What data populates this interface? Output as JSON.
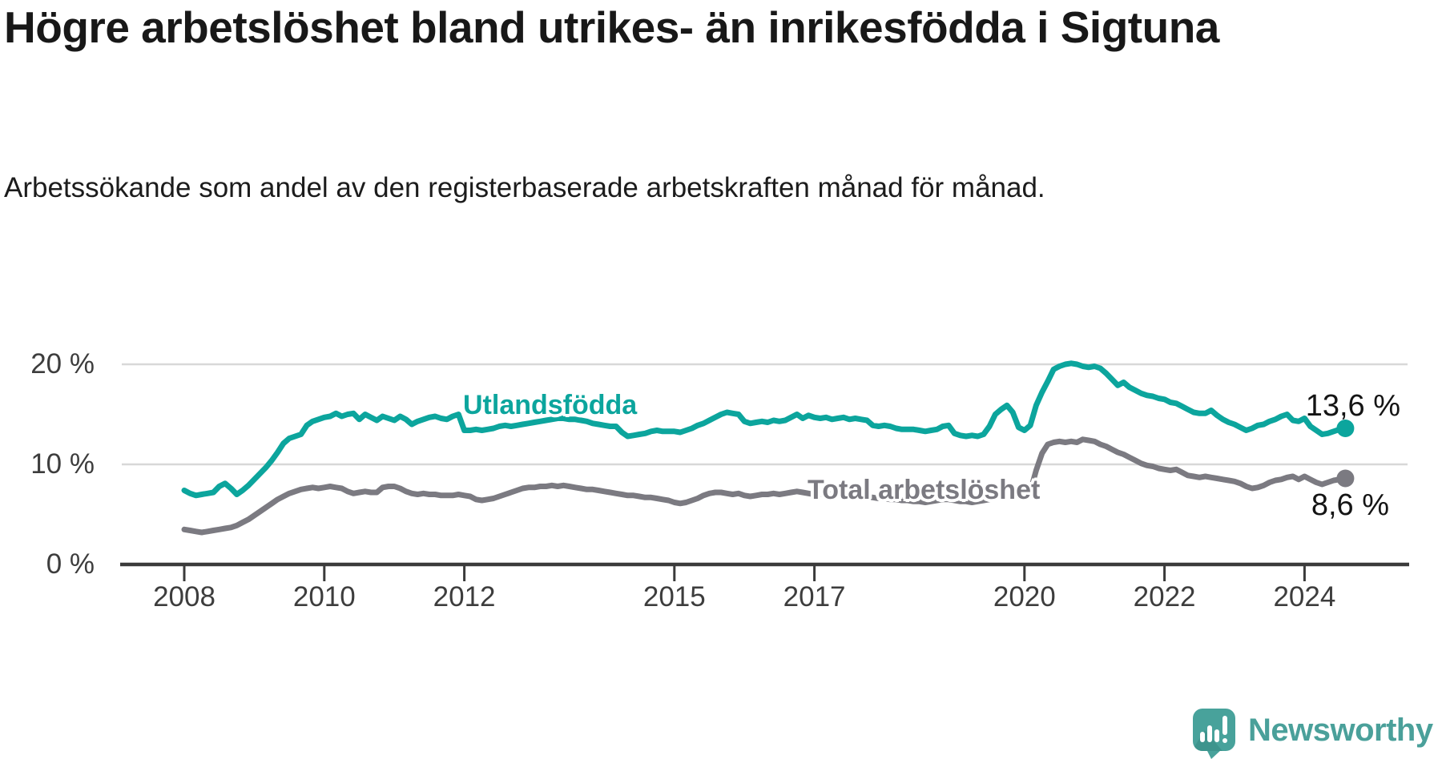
{
  "title": "Högre arbetslöshet bland utrikes- än inrikesfödda i Sigtuna",
  "subtitle": "Arbetssökande som andel av den registerbaserade arbetskraften månad för månad.",
  "logo": {
    "brand": "Newsworthy",
    "icon": "newsworthy-speech-bubble-chart-icon"
  },
  "colors": {
    "foreign_born_line": "#0ca59d",
    "total_line": "#7b7a81",
    "axis": "#3b3b3b",
    "grid": "#d8d8d8",
    "title_text": "#181818",
    "brand_teal": "#4aa09a"
  },
  "chart_data": {
    "type": "line",
    "title": "Högre arbetslöshet bland utrikes- än inrikesfödda i Sigtuna",
    "subtitle": "Arbetssökande som andel av den registerbaserade arbetskraften månad för månad.",
    "unit": "percent",
    "frequency": "monthly",
    "x_start": "2008-01",
    "x_end": "2024-08",
    "xticks": [
      2008,
      2010,
      2012,
      2015,
      2017,
      2020,
      2022,
      2024
    ],
    "yticks": [
      {
        "label": "0 %",
        "value": 0
      },
      {
        "label": "10 %",
        "value": 10
      },
      {
        "label": "20 %",
        "value": 20
      }
    ],
    "ylim": [
      0,
      22
    ],
    "grid": "horizontal",
    "legend_position": "inline-labels",
    "series": [
      {
        "name": "Utlandsfödda",
        "color": "#0ca59d",
        "end_label": "13,6 %",
        "end_value": 13.6,
        "values": [
          7.4,
          7.1,
          6.9,
          7.0,
          7.1,
          7.2,
          7.8,
          8.1,
          7.6,
          7.0,
          7.4,
          7.9,
          8.5,
          9.1,
          9.7,
          10.4,
          11.2,
          12.1,
          12.6,
          12.8,
          13.0,
          13.9,
          14.3,
          14.5,
          14.7,
          14.8,
          15.1,
          14.8,
          15.0,
          15.1,
          14.5,
          15.0,
          14.7,
          14.4,
          14.8,
          14.6,
          14.4,
          14.8,
          14.5,
          14.0,
          14.3,
          14.5,
          14.7,
          14.8,
          14.6,
          14.5,
          14.8,
          15.0,
          13.4,
          13.4,
          13.5,
          13.4,
          13.5,
          13.6,
          13.8,
          13.9,
          13.8,
          13.9,
          14.0,
          14.1,
          14.2,
          14.3,
          14.4,
          14.5,
          14.6,
          14.6,
          14.5,
          14.5,
          14.4,
          14.3,
          14.1,
          14.0,
          13.9,
          13.8,
          13.8,
          13.2,
          12.8,
          12.9,
          13.0,
          13.1,
          13.3,
          13.4,
          13.3,
          13.3,
          13.3,
          13.2,
          13.4,
          13.6,
          13.9,
          14.1,
          14.4,
          14.7,
          15.0,
          15.2,
          15.1,
          15.0,
          14.3,
          14.1,
          14.2,
          14.3,
          14.2,
          14.4,
          14.3,
          14.4,
          14.7,
          15.0,
          14.6,
          14.9,
          14.7,
          14.6,
          14.7,
          14.5,
          14.6,
          14.7,
          14.5,
          14.6,
          14.5,
          14.4,
          13.9,
          13.8,
          13.9,
          13.8,
          13.6,
          13.5,
          13.5,
          13.5,
          13.4,
          13.3,
          13.4,
          13.5,
          13.8,
          13.9,
          13.1,
          12.9,
          12.8,
          12.9,
          12.8,
          13.0,
          13.8,
          15.0,
          15.5,
          15.9,
          15.2,
          13.7,
          13.4,
          13.9,
          15.9,
          17.2,
          18.3,
          19.5,
          19.8,
          20.0,
          20.1,
          20.0,
          19.8,
          19.7,
          19.8,
          19.6,
          19.1,
          18.5,
          17.9,
          18.2,
          17.7,
          17.4,
          17.1,
          16.9,
          16.8,
          16.6,
          16.5,
          16.2,
          16.1,
          15.8,
          15.5,
          15.2,
          15.1,
          15.1,
          15.4,
          14.9,
          14.5,
          14.2,
          14.0,
          13.7,
          13.4,
          13.6,
          13.9,
          14.0,
          14.3,
          14.5,
          14.8,
          15.0,
          14.4,
          14.3,
          14.6,
          13.8,
          13.4,
          13.0,
          13.1,
          13.3,
          13.5,
          13.6
        ]
      },
      {
        "name": "Total arbetslöshet",
        "color": "#7b7a81",
        "end_label": "8,6 %",
        "end_value": 8.6,
        "values": [
          3.5,
          3.4,
          3.3,
          3.2,
          3.3,
          3.4,
          3.5,
          3.6,
          3.7,
          3.9,
          4.2,
          4.5,
          4.9,
          5.3,
          5.7,
          6.1,
          6.5,
          6.8,
          7.1,
          7.3,
          7.5,
          7.6,
          7.7,
          7.6,
          7.7,
          7.8,
          7.7,
          7.6,
          7.3,
          7.1,
          7.2,
          7.3,
          7.2,
          7.2,
          7.7,
          7.8,
          7.8,
          7.6,
          7.3,
          7.1,
          7.0,
          7.1,
          7.0,
          7.0,
          6.9,
          6.9,
          6.9,
          7.0,
          6.9,
          6.8,
          6.5,
          6.4,
          6.5,
          6.6,
          6.8,
          7.0,
          7.2,
          7.4,
          7.6,
          7.7,
          7.7,
          7.8,
          7.8,
          7.9,
          7.8,
          7.9,
          7.8,
          7.7,
          7.6,
          7.5,
          7.5,
          7.4,
          7.3,
          7.2,
          7.1,
          7.0,
          6.9,
          6.9,
          6.8,
          6.7,
          6.7,
          6.6,
          6.5,
          6.4,
          6.2,
          6.1,
          6.2,
          6.4,
          6.6,
          6.9,
          7.1,
          7.2,
          7.2,
          7.1,
          7.0,
          7.1,
          6.9,
          6.8,
          6.9,
          7.0,
          7.0,
          7.1,
          7.0,
          7.1,
          7.2,
          7.3,
          7.2,
          7.1,
          7.0,
          7.0,
          7.1,
          7.0,
          6.9,
          7.0,
          6.9,
          6.8,
          6.8,
          6.7,
          6.7,
          6.6,
          6.6,
          6.5,
          6.5,
          6.4,
          6.4,
          6.3,
          6.3,
          6.2,
          6.3,
          6.4,
          6.5,
          6.5,
          6.4,
          6.3,
          6.3,
          6.2,
          6.3,
          6.4,
          6.5,
          6.8,
          7.0,
          7.2,
          7.1,
          7.0,
          7.0,
          7.3,
          9.4,
          11.1,
          12.0,
          12.2,
          12.3,
          12.2,
          12.3,
          12.2,
          12.5,
          12.4,
          12.3,
          12.0,
          11.8,
          11.5,
          11.2,
          11.0,
          10.7,
          10.4,
          10.1,
          9.9,
          9.8,
          9.6,
          9.5,
          9.4,
          9.5,
          9.2,
          8.9,
          8.8,
          8.7,
          8.8,
          8.7,
          8.6,
          8.5,
          8.4,
          8.3,
          8.1,
          7.8,
          7.6,
          7.7,
          7.9,
          8.2,
          8.4,
          8.5,
          8.7,
          8.8,
          8.5,
          8.8,
          8.5,
          8.2,
          8.0,
          8.2,
          8.4,
          8.5,
          8.6
        ]
      }
    ]
  }
}
